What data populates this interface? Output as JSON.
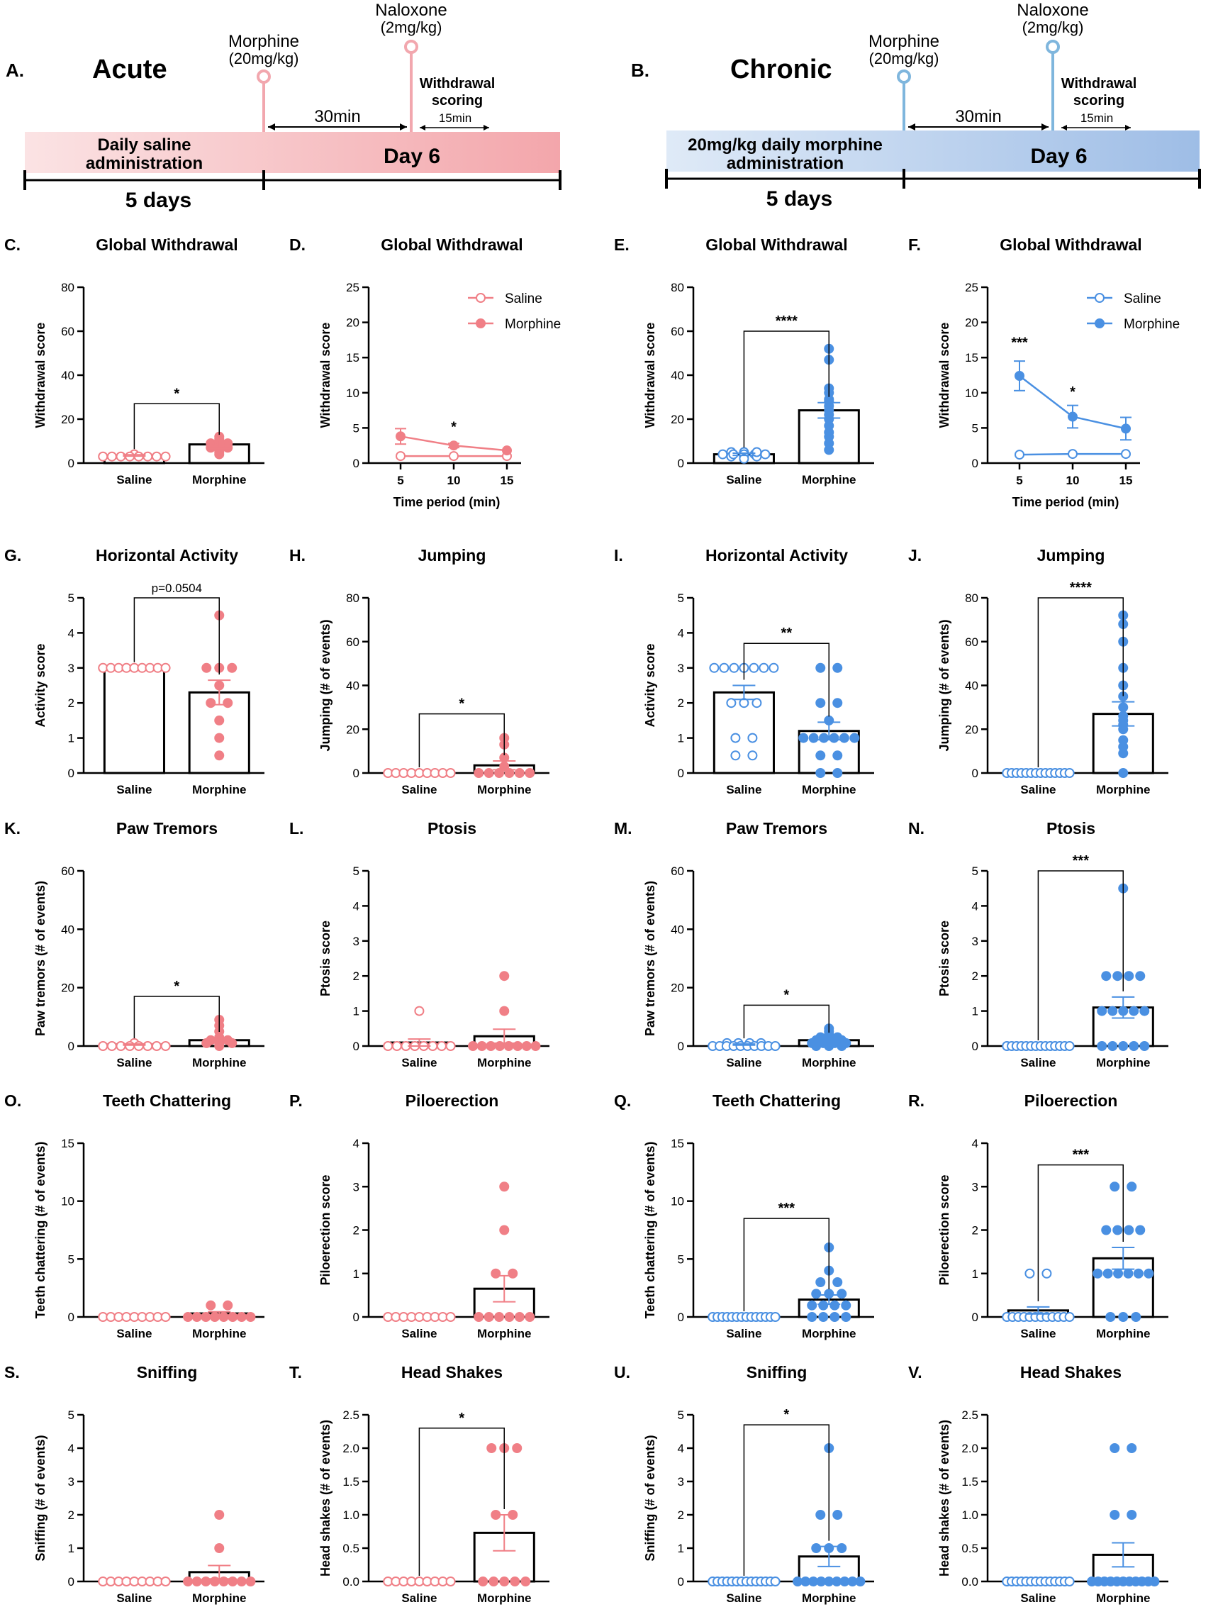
{
  "colors": {
    "acute": "#f07f86",
    "acute_light": "#f5aeb3",
    "chronic": "#4a90e2",
    "chronic_light": "#6fb0e6",
    "axis": "#000000"
  },
  "timelines": [
    {
      "key": "A",
      "letter": "A.",
      "title": "Acute",
      "drug1_name": "Morphine",
      "drug1_dose": "(20mg/kg)",
      "drug2_name": "Naloxone",
      "drug2_dose": "(2mg/kg)",
      "interval": "30min",
      "withdrawal_line1": "Withdrawal",
      "withdrawal_line2": "scoring",
      "scoring_time": "15min",
      "baseline_line1": "Daily saline",
      "baseline_line2": "administration",
      "day_label": "Day 6",
      "duration": "5 days"
    },
    {
      "key": "B",
      "letter": "B.",
      "title": "Chronic",
      "drug1_name": "Morphine",
      "drug1_dose": "(20mg/kg)",
      "drug2_name": "Naloxone",
      "drug2_dose": "(2mg/kg)",
      "interval": "30min",
      "withdrawal_line1": "Withdrawal",
      "withdrawal_line2": "scoring",
      "scoring_time": "15min",
      "baseline_line1": "20mg/kg daily morphine",
      "baseline_line2": "administration",
      "day_label": "Day 6",
      "duration": "5 days"
    }
  ],
  "chart_data": [
    {
      "id": "C",
      "letter": "C.",
      "type": "bar",
      "group": "acute",
      "title": "Global Withdrawal",
      "ylabel": "Withdrawal score",
      "ylim": [
        0,
        80
      ],
      "yticks": [
        "0",
        "20",
        "40",
        "60",
        "80"
      ],
      "categories": [
        "Saline",
        "Morphine"
      ],
      "values": [
        3.5,
        8.5
      ],
      "sem": [
        0.3,
        1.8
      ],
      "points": [
        [
          4,
          3,
          3,
          3,
          3,
          3,
          3,
          3,
          3
        ],
        [
          9,
          11,
          8,
          10,
          5,
          7,
          4,
          12,
          9,
          7
        ]
      ],
      "sig": {
        "label": "*",
        "y": 27
      }
    },
    {
      "id": "D",
      "letter": "D.",
      "type": "line",
      "group": "acute",
      "title": "Global Withdrawal",
      "ylabel": "Withdrawal score",
      "xlabel": "Time period (min)",
      "ylim": [
        0,
        25
      ],
      "yticks": [
        "0",
        "5",
        "10",
        "15",
        "20",
        "25"
      ],
      "x": [
        5,
        10,
        15
      ],
      "xticks": [
        "5",
        "10",
        "15"
      ],
      "series": [
        {
          "name": "Saline",
          "values": [
            1.0,
            1.0,
            1.0
          ],
          "sem": [
            0.1,
            0.1,
            0.1
          ]
        },
        {
          "name": "Morphine",
          "values": [
            3.8,
            2.5,
            1.8
          ],
          "sem": [
            1.1,
            0.3,
            0.2
          ]
        }
      ],
      "annotations": [
        {
          "x": 10,
          "y": 4.5,
          "label": "*"
        }
      ],
      "legend": "top-right"
    },
    {
      "id": "E",
      "letter": "E.",
      "type": "bar",
      "group": "chronic",
      "title": "Global Withdrawal",
      "ylabel": "Withdrawal score",
      "ylim": [
        0,
        80
      ],
      "yticks": [
        "0",
        "20",
        "40",
        "60",
        "80"
      ],
      "categories": [
        "Saline",
        "Morphine"
      ],
      "values": [
        4,
        24
      ],
      "sem": [
        0.5,
        3.5
      ],
      "points": [
        [
          5,
          4,
          3,
          4,
          5,
          3,
          4,
          2,
          4,
          3,
          5,
          4
        ],
        [
          52,
          47,
          34,
          32,
          29,
          28,
          26,
          24,
          22,
          20,
          17,
          14,
          12,
          9,
          6
        ]
      ],
      "sig": {
        "label": "****",
        "y": 60
      }
    },
    {
      "id": "F",
      "letter": "F.",
      "type": "line",
      "group": "chronic",
      "title": "Global Withdrawal",
      "ylabel": "Withdrawal score",
      "xlabel": "Time period (min)",
      "ylim": [
        0,
        25
      ],
      "yticks": [
        "0",
        "5",
        "10",
        "15",
        "20",
        "25"
      ],
      "x": [
        5,
        10,
        15
      ],
      "xticks": [
        "5",
        "10",
        "15"
      ],
      "series": [
        {
          "name": "Saline",
          "values": [
            1.2,
            1.3,
            1.3
          ],
          "sem": [
            0.1,
            0.1,
            0.1
          ]
        },
        {
          "name": "Morphine",
          "values": [
            12.4,
            6.6,
            4.9
          ],
          "sem": [
            2.1,
            1.6,
            1.6
          ]
        }
      ],
      "annotations": [
        {
          "x": 5,
          "y": 16.5,
          "label": "***"
        },
        {
          "x": 10,
          "y": 9.5,
          "label": "*"
        }
      ],
      "legend": "top-right"
    },
    {
      "id": "G",
      "letter": "G.",
      "type": "bar",
      "group": "acute",
      "title": "Horizontal Activity",
      "ylabel": "Activity score",
      "ylim": [
        0,
        5
      ],
      "yticks": [
        "0",
        "1",
        "2",
        "3",
        "4",
        "5"
      ],
      "categories": [
        "Saline",
        "Morphine"
      ],
      "values": [
        3,
        2.3
      ],
      "sem": [
        0,
        0.35
      ],
      "points": [
        [
          3,
          3,
          3,
          3,
          3,
          3,
          3,
          3,
          3
        ],
        [
          4.5,
          3,
          3,
          3,
          2.5,
          2,
          2,
          1.5,
          1,
          0.5
        ]
      ],
      "sig": {
        "label": "p=0.0504",
        "y": 5
      }
    },
    {
      "id": "H",
      "letter": "H.",
      "type": "bar",
      "group": "acute",
      "title": "Jumping",
      "ylabel": "Jumping (# of events)",
      "ylim": [
        0,
        80
      ],
      "yticks": [
        "0",
        "20",
        "40",
        "60",
        "80"
      ],
      "categories": [
        "Saline",
        "Morphine"
      ],
      "values": [
        0,
        3.5
      ],
      "sem": [
        0,
        2
      ],
      "points": [
        [
          0,
          0,
          0,
          0,
          0,
          0,
          0,
          0,
          0
        ],
        [
          16,
          13,
          7,
          3,
          0,
          0,
          0,
          0,
          0,
          0
        ]
      ],
      "sig": {
        "label": "*",
        "y": 27
      }
    },
    {
      "id": "I",
      "letter": "I.",
      "type": "bar",
      "group": "chronic",
      "title": "Horizontal Activity",
      "ylabel": "Activity score",
      "ylim": [
        0,
        5
      ],
      "yticks": [
        "0",
        "1",
        "2",
        "3",
        "4",
        "5"
      ],
      "categories": [
        "Saline",
        "Morphine"
      ],
      "values": [
        2.3,
        1.2
      ],
      "sem": [
        0.2,
        0.25
      ],
      "points": [
        [
          3,
          3,
          3,
          3,
          3,
          3,
          3,
          2,
          2,
          2,
          1,
          1,
          0.5,
          0.5
        ],
        [
          3,
          3,
          2,
          2,
          1.5,
          1,
          1,
          1,
          1,
          1,
          1,
          0.5,
          0.5,
          0,
          0
        ]
      ],
      "sig": {
        "label": "**",
        "y": 3.7
      }
    },
    {
      "id": "J",
      "letter": "J.",
      "type": "bar",
      "group": "chronic",
      "title": "Jumping",
      "ylabel": "Jumping (# of events)",
      "ylim": [
        0,
        80
      ],
      "yticks": [
        "0",
        "20",
        "40",
        "60",
        "80"
      ],
      "categories": [
        "Saline",
        "Morphine"
      ],
      "values": [
        0,
        27
      ],
      "sem": [
        0,
        5.5
      ],
      "points": [
        [
          0,
          0,
          0,
          0,
          0,
          0,
          0,
          0,
          0,
          0,
          0,
          0,
          0,
          0
        ],
        [
          72,
          68,
          60,
          48,
          40,
          35,
          30,
          26,
          24,
          22,
          20,
          15,
          12,
          9,
          0
        ]
      ],
      "sig": {
        "label": "****",
        "y": 80
      }
    },
    {
      "id": "K",
      "letter": "K.",
      "type": "bar",
      "group": "acute",
      "title": "Paw Tremors",
      "ylabel": "Paw tremors (# of events)",
      "ylim": [
        0,
        60
      ],
      "yticks": [
        "0",
        "20",
        "40",
        "60"
      ],
      "categories": [
        "Saline",
        "Morphine"
      ],
      "values": [
        0.5,
        2
      ],
      "sem": [
        0.2,
        0.9
      ],
      "points": [
        [
          1,
          0,
          0,
          0,
          0,
          0,
          0,
          0,
          0
        ],
        [
          9,
          7,
          5,
          3,
          2,
          2,
          1,
          1,
          1,
          0
        ]
      ],
      "sig": {
        "label": "*",
        "y": 17
      }
    },
    {
      "id": "L",
      "letter": "L.",
      "type": "bar",
      "group": "acute",
      "title": "Ptosis",
      "ylabel": "Ptosis score",
      "ylim": [
        0,
        5
      ],
      "yticks": [
        "0",
        "1",
        "2",
        "3",
        "4",
        "5"
      ],
      "categories": [
        "Saline",
        "Morphine"
      ],
      "values": [
        0.1,
        0.28
      ],
      "sem": [
        0.1,
        0.2
      ],
      "points": [
        [
          1,
          0,
          0,
          0,
          0,
          0,
          0,
          0,
          0
        ],
        [
          2,
          1,
          0,
          0,
          0,
          0,
          0,
          0,
          0,
          0
        ]
      ],
      "sig": null
    },
    {
      "id": "M",
      "letter": "M.",
      "type": "bar",
      "group": "chronic",
      "title": "Paw Tremors",
      "ylabel": "Paw tremors (# of events)",
      "ylim": [
        0,
        60
      ],
      "yticks": [
        "0",
        "20",
        "40",
        "60"
      ],
      "categories": [
        "Saline",
        "Morphine"
      ],
      "values": [
        0.5,
        2
      ],
      "sem": [
        0.2,
        0.6
      ],
      "points": [
        [
          1,
          1,
          1,
          1,
          0,
          0,
          0,
          0,
          0,
          0,
          0,
          0,
          0,
          0
        ],
        [
          6,
          5,
          4,
          3,
          3,
          2,
          2,
          2,
          1,
          1,
          1,
          1,
          0,
          0,
          0
        ]
      ],
      "sig": {
        "label": "*",
        "y": 14
      }
    },
    {
      "id": "N",
      "letter": "N.",
      "type": "bar",
      "group": "chronic",
      "title": "Ptosis",
      "ylabel": "Ptosis score",
      "ylim": [
        0,
        5
      ],
      "yticks": [
        "0",
        "1",
        "2",
        "3",
        "4",
        "5"
      ],
      "categories": [
        "Saline",
        "Morphine"
      ],
      "values": [
        0,
        1.1
      ],
      "sem": [
        0,
        0.3
      ],
      "points": [
        [
          0,
          0,
          0,
          0,
          0,
          0,
          0,
          0,
          0,
          0,
          0,
          0,
          0,
          0
        ],
        [
          4.5,
          2,
          2,
          2,
          2,
          1,
          1,
          1,
          1,
          1,
          0,
          0,
          0,
          0,
          0
        ]
      ],
      "sig": {
        "label": "***",
        "y": 5
      }
    },
    {
      "id": "O",
      "letter": "O.",
      "type": "bar",
      "group": "acute",
      "title": "Teeth Chattering",
      "ylabel": "Teeth chattering (# of events)",
      "ylim": [
        0,
        15
      ],
      "yticks": [
        "0",
        "5",
        "10",
        "15"
      ],
      "categories": [
        "Saline",
        "Morphine"
      ],
      "values": [
        0,
        0.3
      ],
      "sem": [
        0,
        0.15
      ],
      "points": [
        [
          0,
          0,
          0,
          0,
          0,
          0,
          0,
          0,
          0
        ],
        [
          1,
          1,
          0,
          0,
          0,
          0,
          0,
          0,
          0,
          0
        ]
      ],
      "sig": null
    },
    {
      "id": "P",
      "letter": "P.",
      "type": "bar",
      "group": "acute",
      "title": "Piloerection",
      "ylabel": "Piloerection score",
      "ylim": [
        0,
        4
      ],
      "yticks": [
        "0",
        "1",
        "2",
        "3",
        "4"
      ],
      "categories": [
        "Saline",
        "Morphine"
      ],
      "values": [
        0,
        0.65
      ],
      "sem": [
        0,
        0.3
      ],
      "points": [
        [
          0,
          0,
          0,
          0,
          0,
          0,
          0,
          0,
          0
        ],
        [
          3,
          2,
          1,
          1,
          0,
          0,
          0,
          0,
          0,
          0
        ]
      ],
      "sig": null
    },
    {
      "id": "Q",
      "letter": "Q.",
      "type": "bar",
      "group": "chronic",
      "title": "Teeth Chattering",
      "ylabel": "Teeth chattering (# of events)",
      "ylim": [
        0,
        15
      ],
      "yticks": [
        "0",
        "5",
        "10",
        "15"
      ],
      "categories": [
        "Saline",
        "Morphine"
      ],
      "values": [
        0,
        1.5
      ],
      "sem": [
        0,
        0.4
      ],
      "points": [
        [
          0,
          0,
          0,
          0,
          0,
          0,
          0,
          0,
          0,
          0,
          0,
          0,
          0,
          0
        ],
        [
          6,
          4,
          3,
          3,
          2,
          2,
          2,
          1,
          1,
          1,
          1,
          0,
          0,
          0,
          0
        ]
      ],
      "sig": {
        "label": "***",
        "y": 8.5
      }
    },
    {
      "id": "R",
      "letter": "R.",
      "type": "bar",
      "group": "chronic",
      "title": "Piloerection",
      "ylabel": "Piloerection score",
      "ylim": [
        0,
        4
      ],
      "yticks": [
        "0",
        "1",
        "2",
        "3",
        "4"
      ],
      "categories": [
        "Saline",
        "Morphine"
      ],
      "values": [
        0.15,
        1.35
      ],
      "sem": [
        0.08,
        0.25
      ],
      "points": [
        [
          1,
          1,
          0,
          0,
          0,
          0,
          0,
          0,
          0,
          0,
          0,
          0,
          0,
          0
        ],
        [
          3,
          3,
          2,
          2,
          2,
          2,
          1,
          1,
          1,
          1,
          1,
          1,
          0,
          0,
          0
        ]
      ],
      "sig": {
        "label": "***",
        "y": 3.5
      }
    },
    {
      "id": "S",
      "letter": "S.",
      "type": "bar",
      "group": "acute",
      "title": "Sniffing",
      "ylabel": "Sniffing (# of events)",
      "ylim": [
        0,
        5
      ],
      "yticks": [
        "0",
        "1",
        "2",
        "3",
        "4",
        "5"
      ],
      "categories": [
        "Saline",
        "Morphine"
      ],
      "values": [
        0,
        0.28
      ],
      "sem": [
        0,
        0.2
      ],
      "points": [
        [
          0,
          0,
          0,
          0,
          0,
          0,
          0,
          0,
          0
        ],
        [
          2,
          1,
          0,
          0,
          0,
          0,
          0,
          0,
          0,
          0
        ]
      ],
      "sig": null
    },
    {
      "id": "T",
      "letter": "T.",
      "type": "bar",
      "group": "acute",
      "title": "Head Shakes",
      "ylabel": "Head shakes (# of events)",
      "ylim": [
        0,
        2.5
      ],
      "yticks": [
        "0.0",
        "0.5",
        "1.0",
        "1.5",
        "2.0",
        "2.5"
      ],
      "categories": [
        "Saline",
        "Morphine"
      ],
      "values": [
        0,
        0.73
      ],
      "sem": [
        0,
        0.27
      ],
      "points": [
        [
          0,
          0,
          0,
          0,
          0,
          0,
          0,
          0,
          0
        ],
        [
          2,
          2,
          2,
          1,
          1,
          0,
          0,
          0,
          0,
          0
        ]
      ],
      "sig": {
        "label": "*",
        "y": 2.3
      }
    },
    {
      "id": "U",
      "letter": "U.",
      "type": "bar",
      "group": "chronic",
      "title": "Sniffing",
      "ylabel": "Sniffing (# of events)",
      "ylim": [
        0,
        5
      ],
      "yticks": [
        "0",
        "1",
        "2",
        "3",
        "4",
        "5"
      ],
      "categories": [
        "Saline",
        "Morphine"
      ],
      "values": [
        0,
        0.75
      ],
      "sem": [
        0,
        0.3
      ],
      "points": [
        [
          0,
          0,
          0,
          0,
          0,
          0,
          0,
          0,
          0,
          0,
          0,
          0,
          0,
          0
        ],
        [
          4,
          2,
          2,
          1,
          1,
          1,
          0,
          0,
          0,
          0,
          0,
          0,
          0,
          0,
          0
        ]
      ],
      "sig": {
        "label": "*",
        "y": 4.7
      }
    },
    {
      "id": "V",
      "letter": "V.",
      "type": "bar",
      "group": "chronic",
      "title": "Head Shakes",
      "ylabel": "Head shakes (# of events)",
      "ylim": [
        0,
        2.5
      ],
      "yticks": [
        "0.0",
        "0.5",
        "1.0",
        "1.5",
        "2.0",
        "2.5"
      ],
      "categories": [
        "Saline",
        "Morphine"
      ],
      "values": [
        0,
        0.4
      ],
      "sem": [
        0,
        0.18
      ],
      "points": [
        [
          0,
          0,
          0,
          0,
          0,
          0,
          0,
          0,
          0,
          0,
          0,
          0,
          0,
          0
        ],
        [
          2,
          2,
          1,
          1,
          0,
          0,
          0,
          0,
          0,
          0,
          0,
          0,
          0,
          0,
          0
        ]
      ],
      "sig": null
    }
  ]
}
